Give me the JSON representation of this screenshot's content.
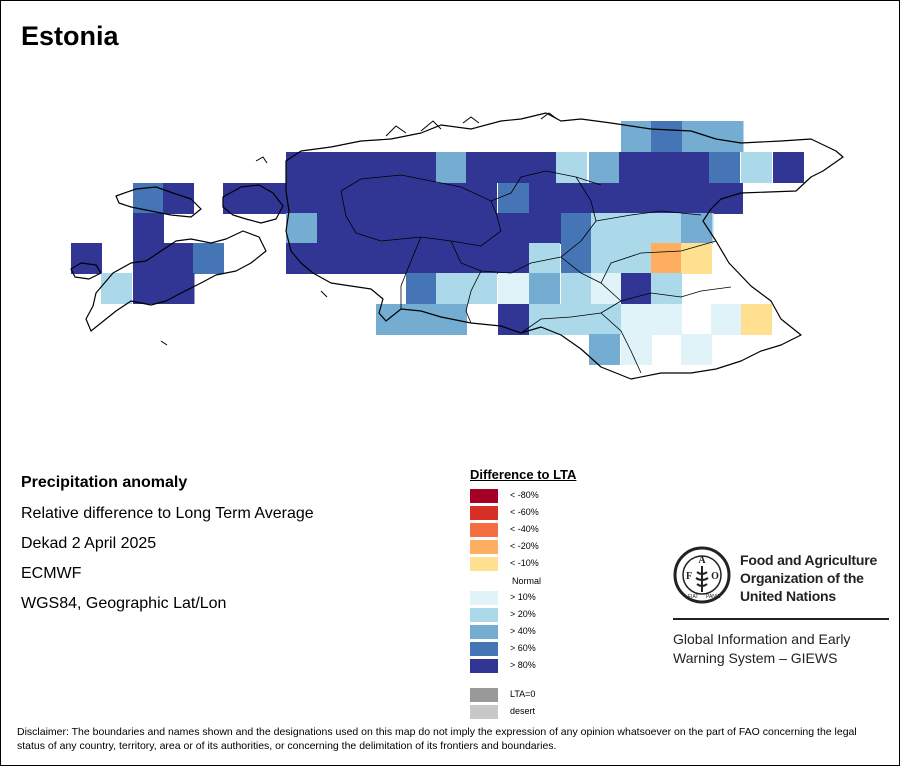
{
  "title": "Estonia",
  "info": {
    "heading": "Precipitation anomaly",
    "subtitle": "Relative difference to Long Term Average",
    "period": "Dekad 2 April 2025",
    "model": "ECMWF",
    "projection": "WGS84, Geographic Lat/Lon"
  },
  "legend": {
    "title": "Difference to LTA",
    "classes": [
      {
        "label": "< -80%",
        "color": "#a50026"
      },
      {
        "label": "< -60%",
        "color": "#d73027"
      },
      {
        "label": "< -40%",
        "color": "#f46d43"
      },
      {
        "label": "< -20%",
        "color": "#fdae61"
      },
      {
        "label": "< -10%",
        "color": "#fee090"
      },
      {
        "label": "Normal",
        "color": "#ffffff"
      },
      {
        "label": "> 10%",
        "color": "#e0f3f8"
      },
      {
        "label": "> 20%",
        "color": "#abd9e9"
      },
      {
        "label": "> 40%",
        "color": "#74add1"
      },
      {
        "label": "> 60%",
        "color": "#4575b4"
      },
      {
        "label": "> 80%",
        "color": "#313695"
      }
    ],
    "extra": [
      {
        "label": "LTA=0",
        "color": "#999999"
      },
      {
        "label": "desert",
        "color": "#c8c8c8"
      }
    ]
  },
  "fao": {
    "name_line1": "Food and Agriculture",
    "name_line2": "Organization of the",
    "name_line3": "United Nations",
    "giews_line1": "Global Information and Early",
    "giews_line2": "Warning System – GIEWS",
    "logo_text": "FIAT PANIS"
  },
  "disclaimer": "Disclaimer: The boundaries and names shown and the designations used on this map do not imply the expression of any opinion whatsoever on the part of FAO concerning the legal status of any country, territory, area or of its authorities, or concerning the delimitation of its frontiers and boundaries."
}
